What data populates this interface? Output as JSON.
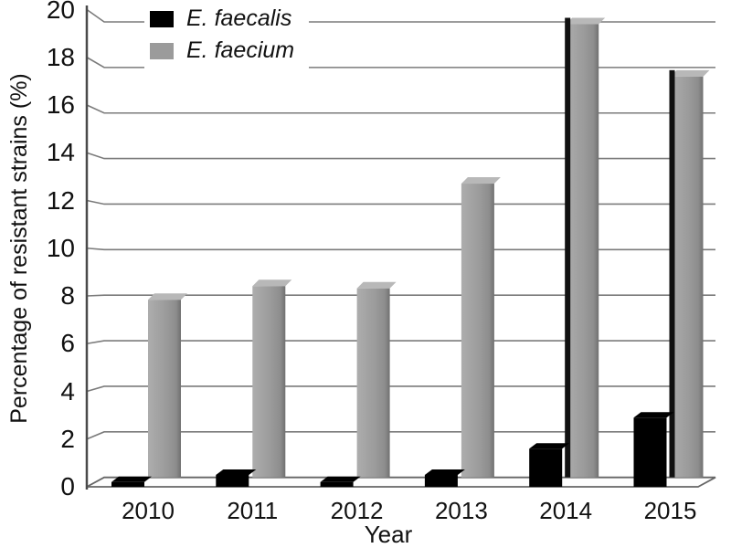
{
  "figure": {
    "background_color": "#ffffff",
    "description": "Grouped pseudo-3D bar chart of percentage of resistant enterococci strains by year"
  },
  "chart_data": {
    "type": "bar",
    "title": "",
    "xlabel": "Year",
    "ylabel": "Percentage of resistant strains (%)",
    "categories": [
      "2010",
      "2011",
      "2012",
      "2013",
      "2014",
      "2015"
    ],
    "series": [
      {
        "name": "E. faecalis",
        "color": "#000000",
        "values": [
          0.2,
          0.5,
          0.2,
          0.5,
          1.6,
          2.9
        ]
      },
      {
        "name": "E. faecium",
        "color": "#9b9b9b",
        "values": [
          7.8,
          8.4,
          8.3,
          12.9,
          19.9,
          17.6
        ]
      }
    ],
    "ylim": [
      0,
      20
    ],
    "ytick_step": 2,
    "yticks": [
      0,
      2,
      4,
      6,
      8,
      10,
      12,
      14,
      16,
      18,
      20
    ],
    "grid": true,
    "legend_position": "top-inside-left",
    "style_hints": {
      "effect": "pseudo-3d",
      "gridline_color": "#7b7b7b",
      "axis_color": "#4a4a4a",
      "floor_edge_color": "#666666",
      "gray_bar_top_face_color": "#b8b8b8",
      "dark_left_edge_on_bars": [
        "2014",
        "2015"
      ]
    }
  }
}
